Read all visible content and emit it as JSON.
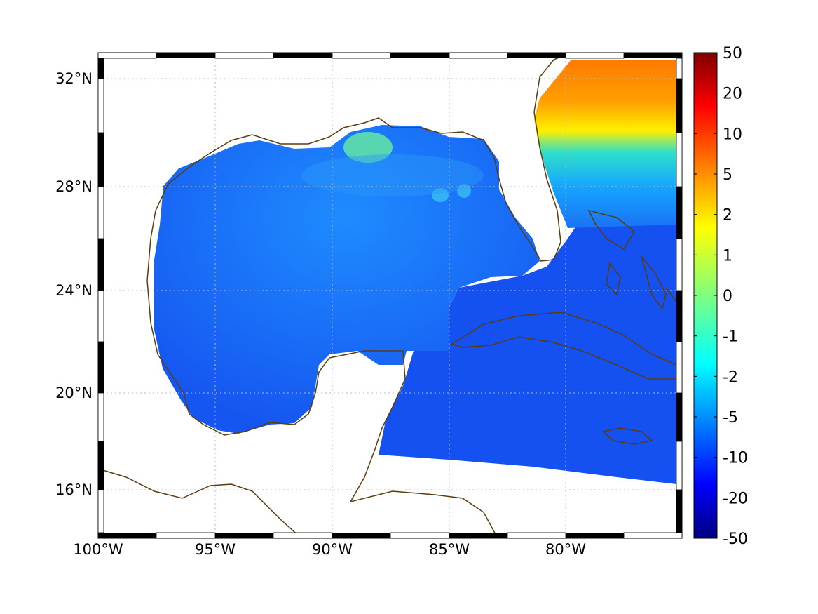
{
  "map": {
    "projection": "mercator",
    "lon_range": [
      "100°W",
      "75°W"
    ],
    "lat_range": [
      "14°N",
      "33°N"
    ],
    "lon_ticks": [
      "100°W",
      "95°W",
      "90°W",
      "85°W",
      "80°W"
    ],
    "lat_ticks": [
      "32°N",
      "28°N",
      "24°N",
      "20°N",
      "16°N"
    ],
    "grid": "dotted",
    "frame": "black-and-white-checkered",
    "coastline_color": "#5a3d0f",
    "field_region": "Gulf of Mexico and western Caribbean / Florida Atlantic coast",
    "field_description_colors": {
      "gulf_interior": "#1a66f2",
      "caribbean": "#1552f0",
      "mississippi_outflow": "#5ee0a8",
      "atlantic_north": "#ff7a00",
      "atlantic_mid": "#ffef00"
    }
  },
  "colorbar": {
    "colormap": "jet",
    "scale": "symmetric-log",
    "tick_labels": [
      "50",
      "20",
      "10",
      "5",
      "2",
      "1",
      "0",
      "-1",
      "-2",
      "-5",
      "-10",
      "-20",
      "-50"
    ],
    "tick_values": [
      50,
      20,
      10,
      5,
      2,
      1,
      0,
      -1,
      -2,
      -5,
      -10,
      -20,
      -50
    ]
  }
}
